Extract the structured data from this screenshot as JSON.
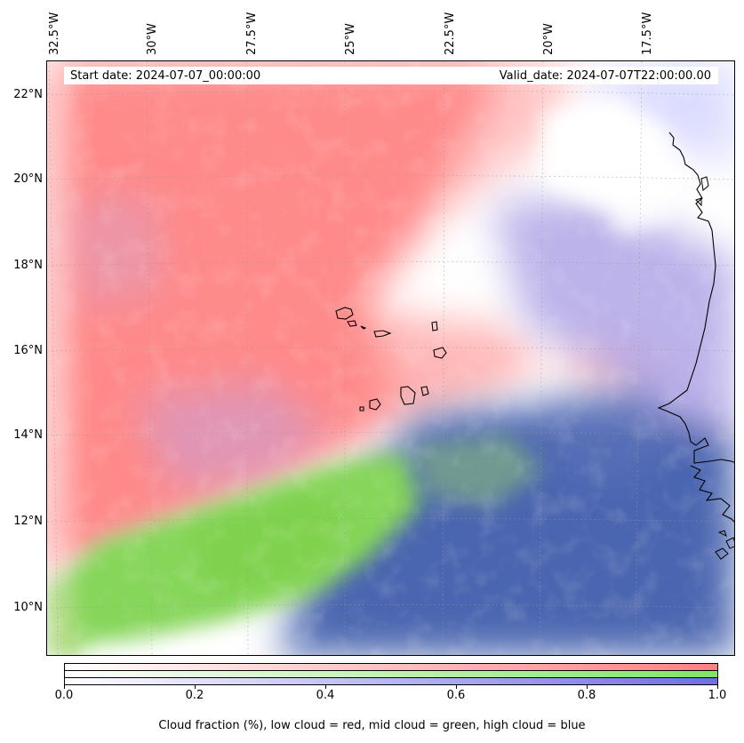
{
  "info": {
    "start_date": "Start date: 2024-07-07_00:00:00",
    "valid_date": "Valid_date: 2024-07-07T22:00:00.00"
  },
  "axes": {
    "lon_labels": [
      "32.5°W",
      "30°W",
      "27.5°W",
      "25°W",
      "22.5°W",
      "20°W",
      "17.5°W"
    ],
    "lat_labels": [
      "22°N",
      "20°N",
      "18°N",
      "16°N",
      "14°N",
      "12°N",
      "10°N"
    ]
  },
  "colorbar": {
    "ticks": [
      "0.0",
      "0.2",
      "0.4",
      "0.6",
      "0.8",
      "1.0"
    ],
    "label": "Cloud fraction (%), low cloud = red, mid cloud = green, high cloud = blue",
    "colors": {
      "low": "#ff8080",
      "mid": "#80e664",
      "high": "#6e6ee6"
    }
  }
}
